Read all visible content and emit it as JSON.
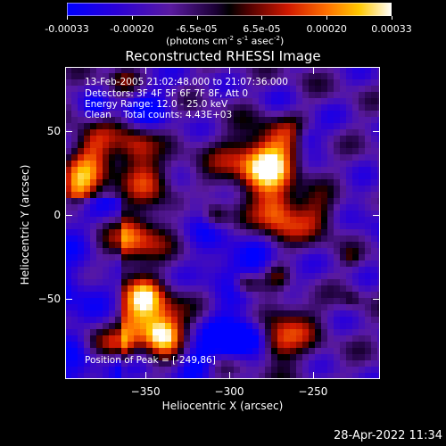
{
  "colorbar": {
    "tick_labels": [
      "-0.00033",
      "-0.00020",
      "-6.5e-05",
      "6.5e-05",
      "0.00020",
      "0.00033"
    ],
    "units_main": "(photons cm",
    "units_sup1": "-2",
    "units_mid": " s",
    "units_sup2": "-1",
    "units_end": " asec",
    "units_sup3": "-2",
    "units_close": ")",
    "range": [
      -0.00033,
      0.00033
    ],
    "colors": [
      "#0000ff",
      "#3a00c8",
      "#5a1a9a",
      "#000000",
      "#7a0000",
      "#e02000",
      "#ff8000",
      "#ffd000",
      "#ffffff"
    ]
  },
  "chart_data": {
    "type": "heatmap",
    "title": "Reconstructed RHESSI Image",
    "xlabel": "Heliocentric X (arcsec)",
    "ylabel": "Heliocentric Y (arcsec)",
    "xlim": [
      -398,
      -210
    ],
    "ylim": [
      -98,
      88
    ],
    "x_ticks": [
      -350,
      -300,
      -250
    ],
    "x_tick_labels": [
      "−350",
      "−300",
      "−250"
    ],
    "y_ticks": [
      50,
      0,
      -50
    ],
    "y_tick_labels": [
      "50",
      "0",
      "−50"
    ],
    "grid": false,
    "peak": [
      -249,
      86
    ]
  },
  "annotations": {
    "line1": "13-Feb-2005 21:02:48.000 to 21:07:36.000",
    "line2": "Detectors: 3F 4F 5F 6F 7F 8F, Att 0",
    "line3": "Energy Range: 12.0 - 25.0 keV",
    "line4": "Clean    Total counts: 4.43E+03",
    "peak_label": "Position of Peak = [-249,86]"
  },
  "footer": {
    "timestamp": "28-Apr-2022 11:34"
  }
}
